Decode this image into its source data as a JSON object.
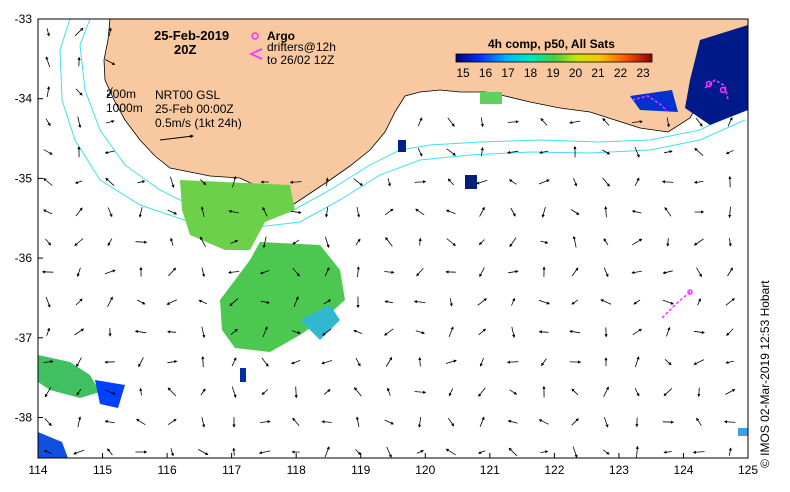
{
  "map": {
    "date": "25-Feb-2019",
    "time": "20Z",
    "legend_argo": "Argo",
    "legend_drifters_line1": "drifters@12h",
    "legend_drifters_line2": "to 26/02 12Z",
    "depth_200": "200m",
    "depth_1000": "1000m",
    "source_line1": "NRT00 GSL",
    "source_line2": "25-Feb 00:00Z",
    "scale_label": "0.5m/s (1kt 24h)",
    "colorbar_title": "4h comp, p50, All Sats",
    "colorbar_ticks": [
      "15",
      "16",
      "17",
      "18",
      "19",
      "20",
      "21",
      "22",
      "23"
    ],
    "credit": "© IMOS 02-Mar-2019 12:53 Hobart",
    "x_ticks": [
      "114",
      "115",
      "116",
      "117",
      "118",
      "119",
      "120",
      "121",
      "122",
      "123",
      "124",
      "125"
    ],
    "y_ticks": [
      "-33",
      "-34",
      "-35",
      "-36",
      "-37",
      "-38"
    ],
    "colors": {
      "land": "#f8c9a0",
      "isobath": "#40e0f0",
      "argo": "#ff33ff",
      "drifter": "#ff33ff"
    },
    "icons": [
      "argo-float-icon",
      "drifter-arrow-icon"
    ]
  }
}
